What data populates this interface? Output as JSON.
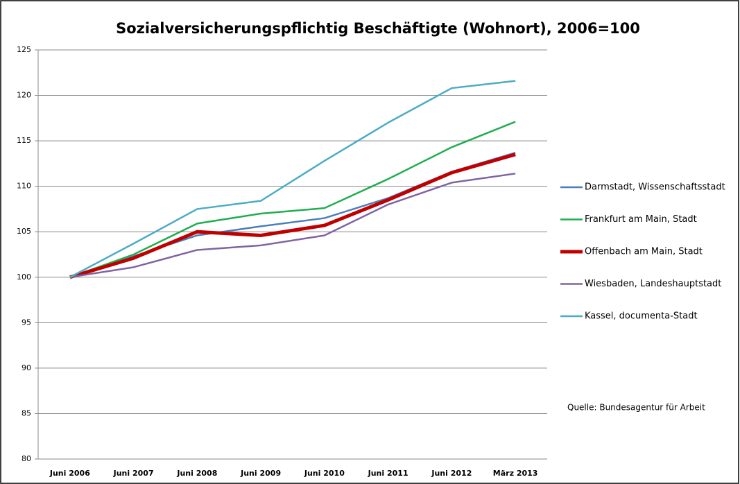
{
  "chart_data": {
    "type": "line",
    "title": "Sozialversicherungspflichtig Beschäftigte (Wohnort), 2006=100",
    "annotation": "Quelle: Bundesagentur für Arbeit",
    "categories": [
      "Juni 2006",
      "Juni 2007",
      "Juni 2008",
      "Juni 2009",
      "Juni 2010",
      "Juni 2011",
      "Juni 2012",
      "März 2013"
    ],
    "series": [
      {
        "name": "Darmstadt, Wissenschaftsstadt",
        "color": "#4a7ebb",
        "values": [
          100,
          102.3,
          104.6,
          105.6,
          106.5,
          108.7,
          111.6,
          113.7
        ]
      },
      {
        "name": "Frankfurt am Main, Stadt",
        "color": "#1fae4f",
        "values": [
          100,
          102.5,
          105.9,
          107.0,
          107.6,
          110.8,
          114.3,
          117.1
        ]
      },
      {
        "name": "Offenbach am Main, Stadt",
        "color": "#c00000",
        "values": [
          100,
          102.1,
          105.0,
          104.6,
          105.7,
          108.5,
          111.5,
          113.5
        ]
      },
      {
        "name": "Wiesbaden, Landeshauptstadt",
        "color": "#8064a2",
        "values": [
          100,
          101.1,
          103.0,
          103.5,
          104.6,
          108.0,
          110.4,
          111.4
        ]
      },
      {
        "name": "Kassel, documenta-Stadt",
        "color": "#4bacc6",
        "values": [
          100,
          103.7,
          107.5,
          108.4,
          112.8,
          117.0,
          120.8,
          121.6
        ]
      }
    ],
    "ylim": [
      80,
      125
    ],
    "yticks": [
      80,
      85,
      90,
      95,
      100,
      105,
      110,
      115,
      120,
      125
    ],
    "grid": true,
    "legend": "right"
  }
}
